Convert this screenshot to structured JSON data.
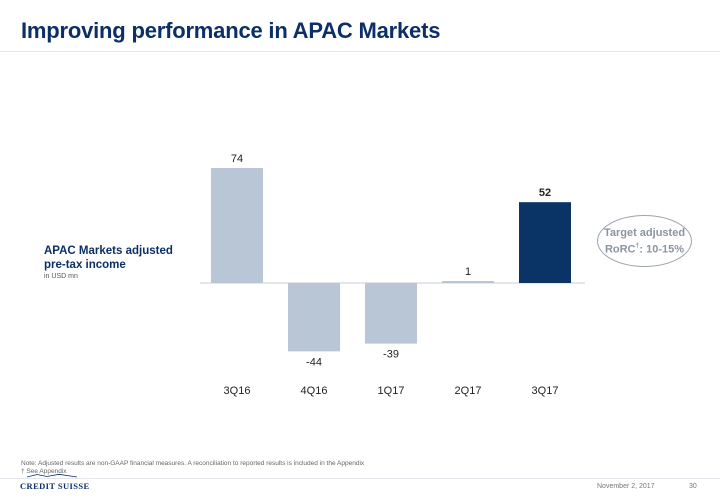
{
  "header": {
    "title": "Improving performance in APAC Markets"
  },
  "series_label": {
    "line1": "APAC Markets adjusted",
    "line2": "pre-tax income",
    "unit": "in USD mn"
  },
  "target": {
    "line1": "Target adjusted",
    "line2_pre": "RoRC",
    "line2_sup": "†",
    "line2_post": ": 10-15%"
  },
  "footer": {
    "note1": "Note: Adjusted results are non-GAAP financial measures. A reconciliation to reported results is included in the Appendix",
    "note2": "† See Appendix",
    "brand": "CREDIT SUISSE",
    "date": "November 2, 2017",
    "page": "30"
  },
  "colors": {
    "bar": "#b8c6d6",
    "highlight": "#0b3466",
    "title": "#0b2f66"
  },
  "chart_data": {
    "type": "bar",
    "categories": [
      "3Q16",
      "4Q16",
      "1Q17",
      "2Q17",
      "3Q17"
    ],
    "values": [
      74,
      -44,
      -39,
      1,
      52
    ],
    "highlight_index": 4,
    "ylim": [
      -44,
      74
    ],
    "grid": false,
    "xlabel": "",
    "ylabel": ""
  }
}
